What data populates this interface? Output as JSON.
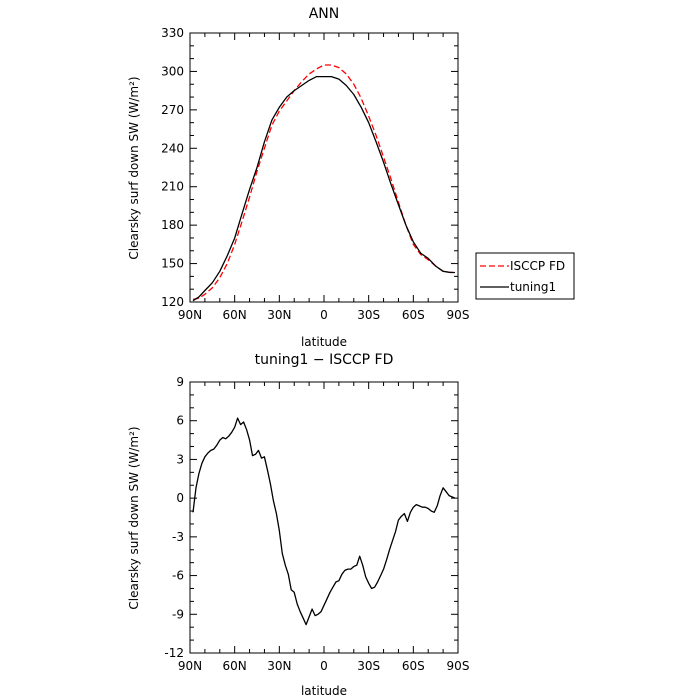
{
  "chart_data": [
    {
      "type": "line",
      "title": "ANN",
      "xlabel": "latitude",
      "ylabel": "Clearsky surf down SW (W/m²)",
      "xlim": [
        90,
        -90
      ],
      "ylim": [
        120,
        330
      ],
      "xticks": [
        {
          "value": 90,
          "label": "90N"
        },
        {
          "value": 60,
          "label": "60N"
        },
        {
          "value": 30,
          "label": "30N"
        },
        {
          "value": 0,
          "label": "0"
        },
        {
          "value": -30,
          "label": "30S"
        },
        {
          "value": -60,
          "label": "60S"
        },
        {
          "value": -90,
          "label": "90S"
        }
      ],
      "yticks": [
        {
          "value": 330,
          "label": "330"
        },
        {
          "value": 300,
          "label": "300"
        },
        {
          "value": 270,
          "label": "270"
        },
        {
          "value": 240,
          "label": "240"
        },
        {
          "value": 210,
          "label": "210"
        },
        {
          "value": 180,
          "label": "180"
        },
        {
          "value": 150,
          "label": "150"
        },
        {
          "value": 120,
          "label": "120"
        }
      ],
      "legend": "right",
      "series": [
        {
          "name": "ISCCP FD",
          "color": "#ff0000",
          "dash": "dashed",
          "x": [
            88,
            84,
            80,
            75,
            70,
            65,
            60,
            55,
            50,
            45,
            40,
            35,
            30,
            25,
            20,
            15,
            10,
            5,
            0,
            -5,
            -10,
            -15,
            -20,
            -25,
            -30,
            -35,
            -40,
            -45,
            -50,
            -55,
            -60,
            -65,
            -70,
            -75,
            -80,
            -85,
            -88
          ],
          "y": [
            122,
            123,
            126,
            131,
            139,
            150,
            165,
            183,
            202,
            222,
            240,
            258,
            269,
            277,
            285,
            292,
            298,
            302,
            305,
            305,
            303,
            298,
            290,
            279,
            265,
            250,
            233,
            216,
            198,
            180,
            165,
            157,
            153,
            148,
            144,
            143,
            144
          ]
        },
        {
          "name": "tuning1",
          "color": "#000000",
          "dash": "solid",
          "x": [
            88,
            84,
            80,
            75,
            70,
            65,
            60,
            55,
            50,
            45,
            40,
            35,
            30,
            25,
            20,
            15,
            10,
            5,
            0,
            -5,
            -10,
            -15,
            -20,
            -25,
            -30,
            -35,
            -40,
            -45,
            -50,
            -55,
            -60,
            -65,
            -70,
            -75,
            -80,
            -85,
            -88
          ],
          "y": [
            121,
            124,
            129,
            135,
            144,
            156,
            170,
            189,
            208,
            225,
            245,
            262,
            272,
            280,
            285,
            289,
            293,
            296,
            296,
            296,
            294,
            289,
            282,
            272,
            260,
            245,
            229,
            212,
            196,
            180,
            167,
            158,
            154,
            148,
            144,
            143,
            143
          ]
        }
      ]
    },
    {
      "type": "line",
      "title": "tuning1 − ISCCP FD",
      "xlabel": "latitude",
      "ylabel": "Clearsky surf down SW (W/m²)",
      "xlim": [
        90,
        -90
      ],
      "ylim": [
        -12,
        9
      ],
      "xticks": [
        {
          "value": 90,
          "label": "90N"
        },
        {
          "value": 60,
          "label": "60N"
        },
        {
          "value": 30,
          "label": "30N"
        },
        {
          "value": 0,
          "label": "0"
        },
        {
          "value": -30,
          "label": "30S"
        },
        {
          "value": -60,
          "label": "60S"
        },
        {
          "value": -90,
          "label": "90S"
        }
      ],
      "yticks": [
        {
          "value": 9,
          "label": "9"
        },
        {
          "value": 6,
          "label": "6"
        },
        {
          "value": 3,
          "label": "3"
        },
        {
          "value": 0,
          "label": "0"
        },
        {
          "value": -3,
          "label": "-3"
        },
        {
          "value": -6,
          "label": "-6"
        },
        {
          "value": -9,
          "label": "-9"
        },
        {
          "value": -12,
          "label": "-12"
        }
      ],
      "series": [
        {
          "color": "#000000",
          "dash": "solid",
          "x": [
            88,
            86,
            84,
            82,
            80,
            78,
            76,
            74,
            72,
            70,
            68,
            66,
            64,
            62,
            60,
            58,
            56,
            54,
            52,
            50,
            48,
            46,
            44,
            42,
            40,
            38,
            36,
            34,
            32,
            30,
            28,
            26,
            24,
            22,
            20,
            18,
            16,
            14,
            12,
            10,
            8,
            6,
            4,
            2,
            0,
            -2,
            -4,
            -6,
            -8,
            -10,
            -12,
            -14,
            -16,
            -18,
            -20,
            -22,
            -24,
            -26,
            -28,
            -30,
            -32,
            -34,
            -36,
            -38,
            -40,
            -42,
            -44,
            -46,
            -48,
            -50,
            -52,
            -54,
            -56,
            -58,
            -60,
            -62,
            -64,
            -66,
            -68,
            -70,
            -72,
            -74,
            -76,
            -78,
            -80,
            -82,
            -84,
            -86,
            -88
          ],
          "y": [
            -1.1,
            0.8,
            1.9,
            2.7,
            3.2,
            3.5,
            3.7,
            3.8,
            4.1,
            4.5,
            4.7,
            4.6,
            4.8,
            5.1,
            5.5,
            6.2,
            5.7,
            5.9,
            5.3,
            4.5,
            3.3,
            3.4,
            3.7,
            3.1,
            3.2,
            2.2,
            1.1,
            -0.2,
            -1.2,
            -2.5,
            -4.3,
            -5.2,
            -5.9,
            -7.1,
            -7.3,
            -8.2,
            -8.8,
            -9.3,
            -9.8,
            -9.2,
            -8.6,
            -9.1,
            -9.0,
            -8.8,
            -8.3,
            -7.8,
            -7.3,
            -6.9,
            -6.5,
            -6.4,
            -5.9,
            -5.6,
            -5.5,
            -5.5,
            -5.3,
            -5.2,
            -4.5,
            -5.2,
            -6.1,
            -6.6,
            -7.0,
            -6.9,
            -6.5,
            -6.0,
            -5.5,
            -4.8,
            -4.0,
            -3.3,
            -2.6,
            -1.7,
            -1.4,
            -1.2,
            -1.8,
            -1.1,
            -0.7,
            -0.5,
            -0.6,
            -0.7,
            -0.7,
            -0.8,
            -1.0,
            -1.1,
            -0.6,
            0.2,
            0.8,
            0.5,
            0.2,
            0.1,
            0.0
          ]
        }
      ]
    }
  ]
}
